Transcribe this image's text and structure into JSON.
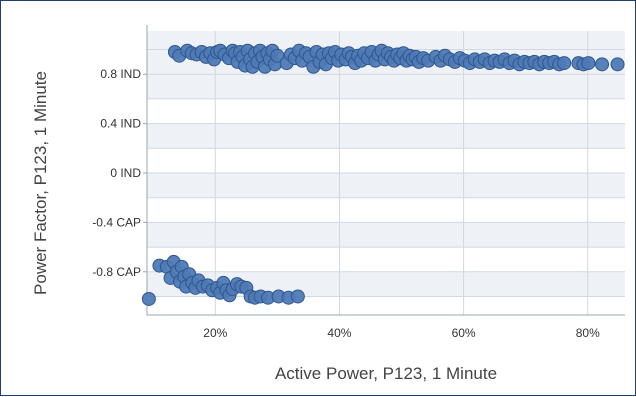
{
  "chart_data": {
    "type": "scatter",
    "xlabel": "Active Power, P123, 1 Minute",
    "ylabel": "Power Factor, P123, 1 Minute",
    "x_unit": "%",
    "xlim": [
      9,
      86
    ],
    "ylim": [
      -1.15,
      1.15
    ],
    "x_ticks": [
      {
        "value": 20,
        "label": "20%"
      },
      {
        "value": 40,
        "label": "40%"
      },
      {
        "value": 60,
        "label": "60%"
      },
      {
        "value": 80,
        "label": "80%"
      }
    ],
    "y_ticks": [
      {
        "value": 0.8,
        "label": "0.8 IND"
      },
      {
        "value": 0.4,
        "label": "0.4 IND"
      },
      {
        "value": 0.0,
        "label": "0 IND"
      },
      {
        "value": -0.4,
        "label": "-0.4 CAP"
      },
      {
        "value": -0.8,
        "label": "-0.8 CAP"
      }
    ],
    "grid": true,
    "colors": {
      "point_fill": "#4f79b5",
      "point_stroke": "#2f578f",
      "plot_band": "#eef2f7",
      "grid": "#cfd8e3"
    },
    "series": [
      {
        "points": [
          [
            13.5,
            0.98
          ],
          [
            14.2,
            0.95
          ],
          [
            15.5,
            0.99
          ],
          [
            16.2,
            0.97
          ],
          [
            17.0,
            0.96
          ],
          [
            17.8,
            0.98
          ],
          [
            18.5,
            0.94
          ],
          [
            19.2,
            0.97
          ],
          [
            19.8,
            0.92
          ],
          [
            20.3,
            0.98
          ],
          [
            20.8,
            0.99
          ],
          [
            21.5,
            0.96
          ],
          [
            22.2,
            0.93
          ],
          [
            22.8,
            0.99
          ],
          [
            23.2,
            0.97
          ],
          [
            23.6,
            0.9
          ],
          [
            24.0,
            0.98
          ],
          [
            24.4,
            0.94
          ],
          [
            24.8,
            0.87
          ],
          [
            25.2,
            0.99
          ],
          [
            25.6,
            0.92
          ],
          [
            26.0,
            0.86
          ],
          [
            26.4,
            0.97
          ],
          [
            26.8,
            0.9
          ],
          [
            27.2,
            0.99
          ],
          [
            27.6,
            0.94
          ],
          [
            28.0,
            0.86
          ],
          [
            28.4,
            0.97
          ],
          [
            28.8,
            0.92
          ],
          [
            29.2,
            0.99
          ],
          [
            29.6,
            0.88
          ],
          [
            30.0,
            0.95
          ],
          [
            31.5,
            0.89
          ],
          [
            32.2,
            0.96
          ],
          [
            32.8,
            0.93
          ],
          [
            33.5,
            0.99
          ],
          [
            34.0,
            0.91
          ],
          [
            34.6,
            0.97
          ],
          [
            35.2,
            0.94
          ],
          [
            35.8,
            0.86
          ],
          [
            36.3,
            0.98
          ],
          [
            36.8,
            0.9
          ],
          [
            37.3,
            0.96
          ],
          [
            37.8,
            0.88
          ],
          [
            38.3,
            0.97
          ],
          [
            38.8,
            0.93
          ],
          [
            39.3,
            0.98
          ],
          [
            39.8,
            0.91
          ],
          [
            40.3,
            0.96
          ],
          [
            41.0,
            0.92
          ],
          [
            41.5,
            0.97
          ],
          [
            42.0,
            0.94
          ],
          [
            42.5,
            0.89
          ],
          [
            43.0,
            0.95
          ],
          [
            43.5,
            0.91
          ],
          [
            44.0,
            0.97
          ],
          [
            44.6,
            0.93
          ],
          [
            45.2,
            0.98
          ],
          [
            45.8,
            0.91
          ],
          [
            46.3,
            0.96
          ],
          [
            46.8,
            0.99
          ],
          [
            47.3,
            0.92
          ],
          [
            47.8,
            0.97
          ],
          [
            48.3,
            0.94
          ],
          [
            48.8,
            0.91
          ],
          [
            49.3,
            0.96
          ],
          [
            49.8,
            0.93
          ],
          [
            50.3,
            0.97
          ],
          [
            50.8,
            0.91
          ],
          [
            51.3,
            0.95
          ],
          [
            51.8,
            0.92
          ],
          [
            52.3,
            0.94
          ],
          [
            52.8,
            0.9
          ],
          [
            53.5,
            0.93
          ],
          [
            54.3,
            0.91
          ],
          [
            55.5,
            0.94
          ],
          [
            56.3,
            0.91
          ],
          [
            57.0,
            0.95
          ],
          [
            57.8,
            0.92
          ],
          [
            58.6,
            0.9
          ],
          [
            59.4,
            0.93
          ],
          [
            60.2,
            0.91
          ],
          [
            61.0,
            0.89
          ],
          [
            61.8,
            0.92
          ],
          [
            62.6,
            0.9
          ],
          [
            63.4,
            0.92
          ],
          [
            64.2,
            0.89
          ],
          [
            65.0,
            0.91
          ],
          [
            65.8,
            0.9
          ],
          [
            66.6,
            0.92
          ],
          [
            67.4,
            0.89
          ],
          [
            68.2,
            0.91
          ],
          [
            69.0,
            0.88
          ],
          [
            69.8,
            0.9
          ],
          [
            70.6,
            0.89
          ],
          [
            71.4,
            0.9
          ],
          [
            72.2,
            0.88
          ],
          [
            73.0,
            0.9
          ],
          [
            73.8,
            0.89
          ],
          [
            74.6,
            0.9
          ],
          [
            75.4,
            0.88
          ],
          [
            76.2,
            0.89
          ],
          [
            78.5,
            0.89
          ],
          [
            79.3,
            0.88
          ],
          [
            80.1,
            0.89
          ],
          [
            82.3,
            0.88
          ],
          [
            84.8,
            0.88
          ]
        ]
      },
      {
        "points": [
          [
            9.3,
            -1.02
          ],
          [
            11.0,
            -0.75
          ],
          [
            12.2,
            -0.76
          ],
          [
            12.8,
            -0.85
          ],
          [
            13.3,
            -0.72
          ],
          [
            13.8,
            -0.8
          ],
          [
            14.3,
            -0.88
          ],
          [
            14.6,
            -0.76
          ],
          [
            15.0,
            -0.84
          ],
          [
            15.3,
            -0.92
          ],
          [
            15.8,
            -0.82
          ],
          [
            16.3,
            -0.89
          ],
          [
            16.8,
            -0.93
          ],
          [
            17.3,
            -0.87
          ],
          [
            18.0,
            -0.92
          ],
          [
            18.8,
            -0.91
          ],
          [
            19.5,
            -0.95
          ],
          [
            20.3,
            -0.93
          ],
          [
            20.8,
            -0.97
          ],
          [
            21.3,
            -0.89
          ],
          [
            21.8,
            -0.95
          ],
          [
            22.3,
            -0.99
          ],
          [
            22.8,
            -0.94
          ],
          [
            23.5,
            -0.9
          ],
          [
            24.2,
            -0.92
          ],
          [
            25.0,
            -0.93
          ],
          [
            25.7,
            -1.0
          ],
          [
            26.4,
            -1.01
          ],
          [
            27.3,
            -1.0
          ],
          [
            28.5,
            -1.01
          ],
          [
            30.2,
            -1.0
          ],
          [
            31.8,
            -1.01
          ],
          [
            33.3,
            -1.0
          ]
        ]
      }
    ]
  }
}
